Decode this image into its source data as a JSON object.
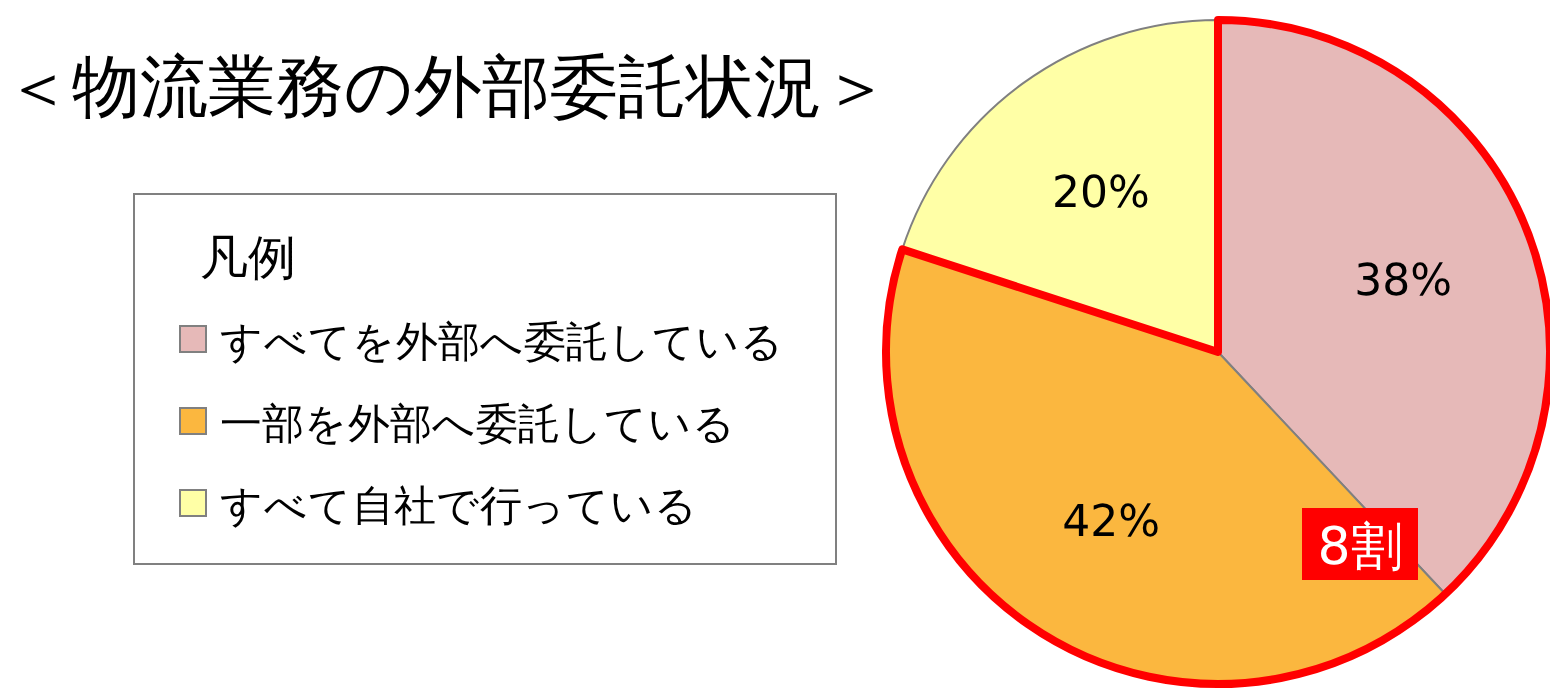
{
  "chart_data": {
    "type": "pie",
    "title": "＜物流業務の外部委託状況＞",
    "legend_title": "凡例",
    "categories": [
      "すべてを外部へ委託している",
      "一部を外部へ委託している",
      "すべて自社で行っている"
    ],
    "values": [
      38,
      42,
      20
    ],
    "colors": [
      "#e6b9b8",
      "#fbb73f",
      "#ffffa6"
    ],
    "value_labels": [
      "38%",
      "42%",
      "20%"
    ],
    "legend": "left",
    "annotations": [
      "8割"
    ]
  }
}
